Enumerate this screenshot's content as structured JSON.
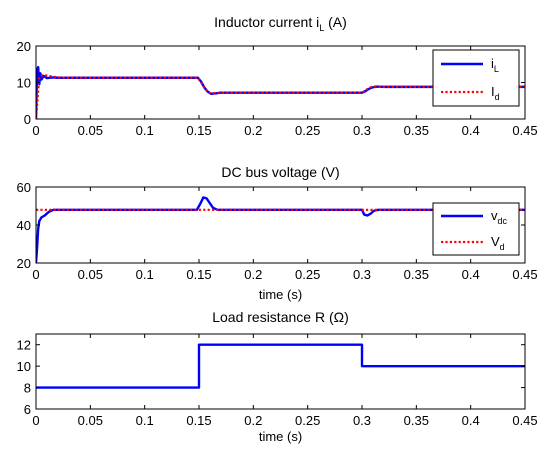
{
  "chart_data": [
    {
      "type": "line",
      "title": "Inductor current i",
      "title_sub": "L",
      "title_unit": " (A)",
      "xlabel": "",
      "xlim": [
        0,
        0.45
      ],
      "ylim": [
        0,
        20
      ],
      "xticks": [
        0,
        0.05,
        0.1,
        0.15,
        0.2,
        0.25,
        0.3,
        0.35,
        0.4,
        0.45
      ],
      "xticklabels": [
        "0",
        "0.05",
        "0.1",
        "0.15",
        "0.2",
        "0.25",
        "0.3",
        "0.35",
        "0.4",
        "0.45"
      ],
      "yticks": [
        0,
        10,
        20
      ],
      "yticklabels": [
        "0",
        "10",
        "20"
      ],
      "legend": {
        "position": "top-right",
        "entries": [
          {
            "label": "i",
            "sub": "L",
            "color": "#0000ff",
            "style": "solid"
          },
          {
            "label": "I",
            "sub": "d",
            "color": "#ff0000",
            "style": "dotted"
          }
        ]
      },
      "series": [
        {
          "name": "iL",
          "color": "#0000ff",
          "style": "solid",
          "x": [
            0,
            0.001,
            0.002,
            0.003,
            0.004,
            0.005,
            0.007,
            0.01,
            0.015,
            0.02,
            0.03,
            0.05,
            0.1,
            0.149,
            0.152,
            0.155,
            0.158,
            0.161,
            0.165,
            0.17,
            0.2,
            0.25,
            0.3,
            0.303,
            0.306,
            0.309,
            0.312,
            0.315,
            0.32,
            0.35,
            0.4,
            0.45
          ],
          "y": [
            0,
            13.5,
            14.2,
            9.5,
            12.5,
            10.8,
            11.8,
            11.2,
            11.4,
            11.3,
            11.3,
            11.3,
            11.3,
            11.3,
            10.2,
            8.6,
            7.5,
            6.9,
            7.0,
            7.2,
            7.2,
            7.2,
            7.2,
            7.6,
            8.2,
            8.6,
            8.8,
            8.9,
            8.8,
            8.8,
            8.8,
            8.8
          ]
        },
        {
          "name": "Id",
          "color": "#ff0000",
          "style": "dotted",
          "x": [
            0,
            0.003,
            0.006,
            0.01,
            0.015,
            0.02,
            0.03,
            0.05,
            0.1,
            0.149,
            0.152,
            0.155,
            0.158,
            0.161,
            0.165,
            0.17,
            0.2,
            0.25,
            0.3,
            0.303,
            0.306,
            0.309,
            0.312,
            0.315,
            0.32,
            0.35,
            0.4,
            0.45
          ],
          "y": [
            0,
            11.5,
            12.0,
            11.9,
            11.6,
            11.4,
            11.3,
            11.3,
            11.3,
            11.3,
            10.0,
            8.5,
            7.4,
            7.0,
            7.1,
            7.2,
            7.2,
            7.2,
            7.2,
            7.8,
            8.4,
            8.8,
            8.9,
            8.9,
            8.8,
            8.8,
            8.8,
            8.8
          ]
        }
      ]
    },
    {
      "type": "line",
      "title": "DC bus voltage (V)",
      "xlabel": "time (s)",
      "xlim": [
        0,
        0.45
      ],
      "ylim": [
        20,
        60
      ],
      "xticks": [
        0,
        0.05,
        0.1,
        0.15,
        0.2,
        0.25,
        0.3,
        0.35,
        0.4,
        0.45
      ],
      "xticklabels": [
        "0",
        "0.05",
        "0.1",
        "0.15",
        "0.2",
        "0.25",
        "0.3",
        "0.35",
        "0.4",
        "0.45"
      ],
      "yticks": [
        20,
        40,
        60
      ],
      "yticklabels": [
        "20",
        "40",
        "60"
      ],
      "legend": {
        "position": "right",
        "entries": [
          {
            "label": "v",
            "sub": "dc",
            "color": "#0000ff",
            "style": "solid"
          },
          {
            "label": "V",
            "sub": "d",
            "color": "#ff0000",
            "style": "dotted"
          }
        ]
      },
      "series": [
        {
          "name": "vdc",
          "color": "#0000ff",
          "style": "solid",
          "x": [
            0,
            0.001,
            0.002,
            0.003,
            0.005,
            0.008,
            0.012,
            0.016,
            0.02,
            0.05,
            0.1,
            0.148,
            0.151,
            0.154,
            0.157,
            0.16,
            0.163,
            0.167,
            0.17,
            0.2,
            0.25,
            0.3,
            0.302,
            0.305,
            0.308,
            0.311,
            0.315,
            0.32,
            0.35,
            0.4,
            0.45
          ],
          "y": [
            20,
            28,
            38,
            42,
            44,
            45,
            47,
            48,
            48,
            48,
            48,
            48,
            51,
            54.5,
            54,
            51.5,
            49,
            48,
            48,
            48,
            48,
            48,
            45.5,
            45,
            46,
            47.5,
            48,
            48,
            48,
            48,
            48
          ]
        },
        {
          "name": "Vd",
          "color": "#ff0000",
          "style": "dotted",
          "x": [
            0,
            0.45
          ],
          "y": [
            48,
            48
          ]
        }
      ]
    },
    {
      "type": "line",
      "title": "Load resistance R (",
      "title_sym": "Ω",
      "title_end": ")",
      "xlabel": "time (s)",
      "xlim": [
        0,
        0.45
      ],
      "ylim": [
        6,
        13
      ],
      "xticks": [
        0,
        0.05,
        0.1,
        0.15,
        0.2,
        0.25,
        0.3,
        0.35,
        0.4,
        0.45
      ],
      "xticklabels": [
        "0",
        "0.05",
        "0.1",
        "0.15",
        "0.2",
        "0.25",
        "0.3",
        "0.35",
        "0.4",
        "0.45"
      ],
      "yticks": [
        6,
        8,
        10,
        12
      ],
      "yticklabels": [
        "6",
        "8",
        "10",
        "12"
      ],
      "legend": null,
      "series": [
        {
          "name": "",
          "color": "#0000ff",
          "style": "solid",
          "x": [
            0,
            0.15,
            0.15,
            0.3,
            0.3,
            0.45
          ],
          "y": [
            8,
            8,
            12,
            12,
            10,
            10
          ]
        }
      ]
    }
  ]
}
